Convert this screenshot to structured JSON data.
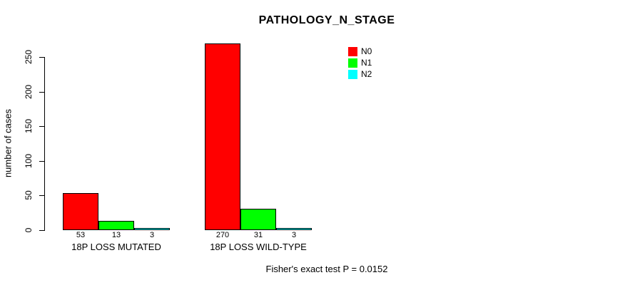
{
  "chart_data": {
    "type": "bar",
    "title": "PATHOLOGY_N_STAGE",
    "xlabel": "",
    "ylabel": "number of cases",
    "ylim": [
      0,
      250
    ],
    "y_ticks": [
      0,
      50,
      100,
      150,
      200,
      250
    ],
    "categories": [
      "18P LOSS MUTATED",
      "18P LOSS WILD-TYPE"
    ],
    "series": [
      {
        "name": "N0",
        "color": "#FF0000",
        "values": [
          53,
          270
        ]
      },
      {
        "name": "N1",
        "color": "#00FF00",
        "values": [
          13,
          31
        ]
      },
      {
        "name": "N2",
        "color": "#00FFFF",
        "values": [
          3,
          3
        ]
      }
    ],
    "bar_value_labels": [
      [
        "53",
        "13",
        "3"
      ],
      [
        "270",
        "31",
        "3"
      ]
    ],
    "legend_position": "top-right",
    "grid": false,
    "annotation": "Fisher's exact test P = 0.0152"
  }
}
